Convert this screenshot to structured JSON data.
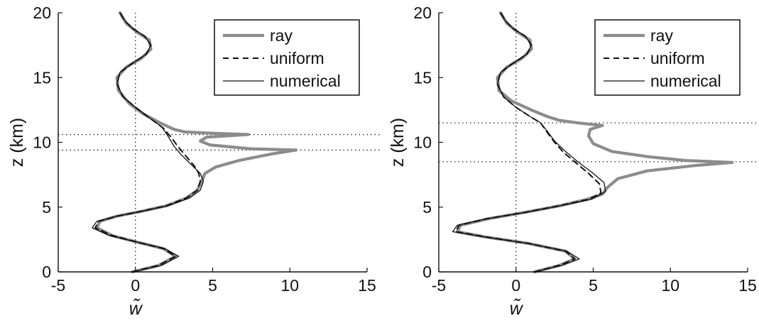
{
  "chart_data": [
    {
      "type": "line",
      "xlabel": "w̃",
      "ylabel": "z (km)",
      "xlim": [
        -5,
        15
      ],
      "ylim": [
        0,
        20
      ],
      "xticks": [
        "-5",
        "0",
        "5",
        "10",
        "15"
      ],
      "yticks": [
        "0",
        "5",
        "10",
        "15",
        "20"
      ],
      "legend_position": "top-right",
      "reference_lines": {
        "vertical_x": 0,
        "horizontal_y": [
          9.4,
          10.6
        ]
      },
      "series": [
        {
          "name": "ray",
          "color": "#8c8c8c",
          "style": "thick-solid",
          "points": [
            [
              -0.2,
              0
            ],
            [
              1.5,
              0.5
            ],
            [
              2.6,
              1.2
            ],
            [
              1.8,
              1.8
            ],
            [
              0.1,
              2.3
            ],
            [
              -1.5,
              2.8
            ],
            [
              -2.5,
              3.4
            ],
            [
              -2.3,
              3.9
            ],
            [
              -1.2,
              4.3
            ],
            [
              0.5,
              4.7
            ],
            [
              2,
              5.1
            ],
            [
              3.3,
              5.7
            ],
            [
              4,
              6.3
            ],
            [
              4.3,
              7
            ],
            [
              4.5,
              7.6
            ],
            [
              5.2,
              8.1
            ],
            [
              6.7,
              8.6
            ],
            [
              8.8,
              9.1
            ],
            [
              10.4,
              9.4
            ],
            [
              7.5,
              9.5
            ],
            [
              4.8,
              9.8
            ],
            [
              4.2,
              10.1
            ],
            [
              4.6,
              10.4
            ],
            [
              7.3,
              10.6
            ],
            [
              5,
              10.7
            ],
            [
              3.2,
              10.8
            ],
            [
              2.5,
              11
            ],
            [
              1.6,
              11.5
            ],
            [
              0.5,
              12.2
            ],
            [
              -0.4,
              13
            ],
            [
              -1.1,
              14
            ],
            [
              -1.2,
              15
            ],
            [
              -0.6,
              15.8
            ],
            [
              0.4,
              16.5
            ],
            [
              1,
              17.2
            ],
            [
              0.9,
              17.9
            ],
            [
              0.1,
              18.5
            ],
            [
              -0.6,
              19.2
            ],
            [
              -1,
              20
            ]
          ]
        },
        {
          "name": "uniform",
          "color": "#111111",
          "style": "dashed",
          "points": [
            [
              -0.2,
              0
            ],
            [
              1.5,
              0.5
            ],
            [
              2.6,
              1.2
            ],
            [
              1.8,
              1.8
            ],
            [
              0.1,
              2.3
            ],
            [
              -1.5,
              2.8
            ],
            [
              -2.6,
              3.4
            ],
            [
              -2.4,
              3.9
            ],
            [
              -1.2,
              4.3
            ],
            [
              0.5,
              4.7
            ],
            [
              2,
              5.1
            ],
            [
              3.3,
              5.7
            ],
            [
              4,
              6.3
            ],
            [
              4.2,
              7
            ],
            [
              4.1,
              7.6
            ],
            [
              3.8,
              8.2
            ],
            [
              3.3,
              8.9
            ],
            [
              2.8,
              9.6
            ],
            [
              2.3,
              10.4
            ],
            [
              1.8,
              11.1
            ],
            [
              1,
              11.8
            ],
            [
              0,
              12.7
            ],
            [
              -0.8,
              13.5
            ],
            [
              -1.2,
              14.5
            ],
            [
              -1,
              15.4
            ],
            [
              -0.2,
              16.1
            ],
            [
              0.7,
              16.8
            ],
            [
              1,
              17.5
            ],
            [
              0.6,
              18.2
            ],
            [
              -0.2,
              18.8
            ],
            [
              -0.7,
              19.4
            ],
            [
              -1,
              20
            ]
          ]
        },
        {
          "name": "numerical",
          "color": "#111111",
          "style": "thin-solid",
          "points": [
            [
              -0.2,
              0
            ],
            [
              1.7,
              0.5
            ],
            [
              2.8,
              1.2
            ],
            [
              1.9,
              1.8
            ],
            [
              0.1,
              2.3
            ],
            [
              -1.7,
              2.8
            ],
            [
              -2.8,
              3.4
            ],
            [
              -2.5,
              3.9
            ],
            [
              -1.2,
              4.3
            ],
            [
              0.5,
              4.7
            ],
            [
              2.1,
              5.1
            ],
            [
              3.5,
              5.7
            ],
            [
              4.2,
              6.3
            ],
            [
              4.4,
              7
            ],
            [
              4.2,
              7.6
            ],
            [
              3.6,
              8.3
            ],
            [
              3,
              9
            ],
            [
              2.5,
              9.7
            ],
            [
              2.1,
              10.5
            ],
            [
              1.7,
              11.2
            ],
            [
              0.9,
              11.9
            ],
            [
              0,
              12.7
            ],
            [
              -0.8,
              13.5
            ],
            [
              -1.2,
              14.5
            ],
            [
              -1,
              15.4
            ],
            [
              -0.2,
              16.1
            ],
            [
              0.7,
              16.8
            ],
            [
              1,
              17.5
            ],
            [
              0.6,
              18.2
            ],
            [
              -0.2,
              18.8
            ],
            [
              -0.7,
              19.4
            ],
            [
              -1,
              20
            ]
          ]
        }
      ]
    },
    {
      "type": "line",
      "xlabel": "w̃",
      "ylabel": "z (km)",
      "xlim": [
        -5,
        15
      ],
      "ylim": [
        0,
        20
      ],
      "xticks": [
        "-5",
        "0",
        "5",
        "10",
        "15"
      ],
      "yticks": [
        "0",
        "5",
        "10",
        "15",
        "20"
      ],
      "legend_position": "top-right",
      "reference_lines": {
        "vertical_x": 0,
        "horizontal_y": [
          8.5,
          11.5
        ]
      },
      "series": [
        {
          "name": "ray",
          "color": "#8c8c8c",
          "style": "thick-solid",
          "points": [
            [
              1.2,
              0
            ],
            [
              2.8,
              0.5
            ],
            [
              3.8,
              1
            ],
            [
              3.2,
              1.6
            ],
            [
              0.8,
              2.2
            ],
            [
              -2,
              2.7
            ],
            [
              -3.8,
              3.1
            ],
            [
              -3.6,
              3.6
            ],
            [
              -1.8,
              4.1
            ],
            [
              0.6,
              4.6
            ],
            [
              2.8,
              5.1
            ],
            [
              4.6,
              5.6
            ],
            [
              5.6,
              6
            ],
            [
              5.9,
              6.5
            ],
            [
              6.6,
              7.2
            ],
            [
              8.5,
              7.8
            ],
            [
              11.5,
              8.2
            ],
            [
              14,
              8.45
            ],
            [
              11,
              8.6
            ],
            [
              8.5,
              8.9
            ],
            [
              6.2,
              9.3
            ],
            [
              5,
              9.9
            ],
            [
              4.7,
              10.5
            ],
            [
              4.8,
              11
            ],
            [
              5.6,
              11.3
            ],
            [
              4,
              11.5
            ],
            [
              2.8,
              11.7
            ],
            [
              2,
              12
            ],
            [
              1,
              12.5
            ],
            [
              -0.3,
              13.2
            ],
            [
              -1.1,
              14
            ],
            [
              -1.2,
              15
            ],
            [
              -0.6,
              15.8
            ],
            [
              0.4,
              16.5
            ],
            [
              1,
              17.2
            ],
            [
              0.9,
              17.9
            ],
            [
              0.1,
              18.5
            ],
            [
              -0.6,
              19.2
            ],
            [
              -1,
              20
            ]
          ]
        },
        {
          "name": "uniform",
          "color": "#111111",
          "style": "dashed",
          "points": [
            [
              1.2,
              0
            ],
            [
              2.8,
              0.5
            ],
            [
              3.8,
              1
            ],
            [
              3.2,
              1.6
            ],
            [
              0.8,
              2.2
            ],
            [
              -2,
              2.7
            ],
            [
              -3.9,
              3.1
            ],
            [
              -3.7,
              3.6
            ],
            [
              -1.9,
              4.1
            ],
            [
              0.6,
              4.6
            ],
            [
              2.8,
              5.1
            ],
            [
              4.7,
              5.6
            ],
            [
              5.5,
              6.1
            ],
            [
              5.4,
              6.8
            ],
            [
              4.7,
              7.6
            ],
            [
              3.9,
              8.4
            ],
            [
              3.1,
              9.2
            ],
            [
              2.5,
              10
            ],
            [
              2,
              10.8
            ],
            [
              1.6,
              11.5
            ],
            [
              0.9,
              12
            ],
            [
              0,
              12.7
            ],
            [
              -0.8,
              13.5
            ],
            [
              -1.2,
              14.5
            ],
            [
              -1,
              15.4
            ],
            [
              -0.2,
              16.1
            ],
            [
              0.7,
              16.8
            ],
            [
              1,
              17.5
            ],
            [
              0.6,
              18.2
            ],
            [
              -0.2,
              18.8
            ],
            [
              -0.7,
              19.4
            ],
            [
              -1,
              20
            ]
          ]
        },
        {
          "name": "numerical",
          "color": "#111111",
          "style": "thin-solid",
          "points": [
            [
              1.2,
              0
            ],
            [
              3,
              0.5
            ],
            [
              4.1,
              1
            ],
            [
              3.3,
              1.6
            ],
            [
              0.8,
              2.2
            ],
            [
              -2.1,
              2.7
            ],
            [
              -4.1,
              3.1
            ],
            [
              -3.8,
              3.6
            ],
            [
              -1.9,
              4.1
            ],
            [
              0.6,
              4.6
            ],
            [
              2.9,
              5.1
            ],
            [
              4.9,
              5.6
            ],
            [
              5.8,
              6.2
            ],
            [
              5.7,
              6.9
            ],
            [
              4.9,
              7.7
            ],
            [
              4,
              8.5
            ],
            [
              3.2,
              9.3
            ],
            [
              2.5,
              10.1
            ],
            [
              2,
              10.9
            ],
            [
              1.6,
              11.5
            ],
            [
              0.9,
              12
            ],
            [
              0,
              12.7
            ],
            [
              -0.8,
              13.5
            ],
            [
              -1.2,
              14.5
            ],
            [
              -1,
              15.4
            ],
            [
              -0.2,
              16.1
            ],
            [
              0.7,
              16.8
            ],
            [
              1,
              17.5
            ],
            [
              0.6,
              18.2
            ],
            [
              -0.2,
              18.8
            ],
            [
              -0.7,
              19.4
            ],
            [
              -1,
              20
            ]
          ]
        }
      ]
    }
  ]
}
